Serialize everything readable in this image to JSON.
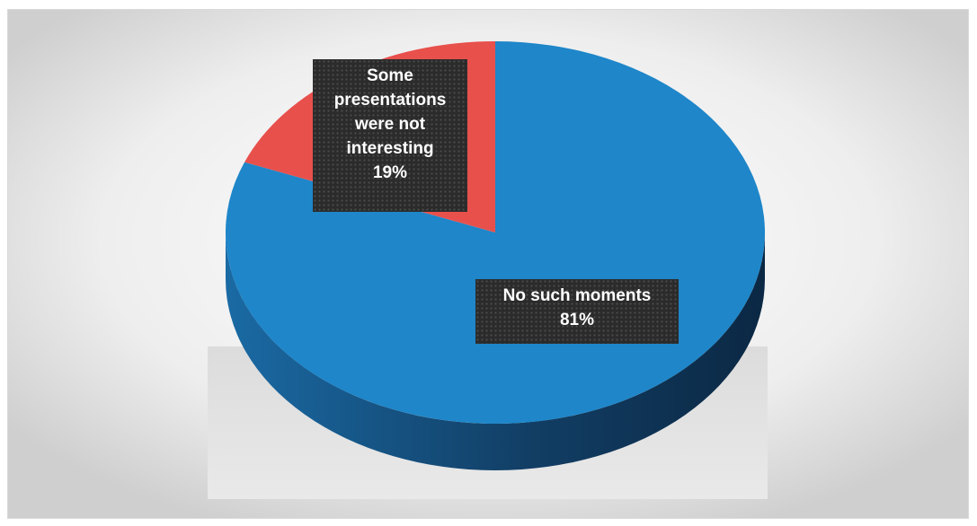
{
  "chart_data": {
    "type": "pie",
    "style": "3d",
    "title": "",
    "slices": [
      {
        "label": "No such moments",
        "value": 81,
        "value_label": "81%",
        "color": "#1e86c9",
        "side_color": "#14527f"
      },
      {
        "label": "Some presentations were not interesting",
        "label_lines": [
          "Some",
          "presentations",
          "were not",
          "interesting"
        ],
        "value": 19,
        "value_label": "19%",
        "color": "#e8504c",
        "side_color": "#9a2f2c"
      }
    ],
    "legend": "none",
    "data_labels": "inside, dark boxes"
  }
}
